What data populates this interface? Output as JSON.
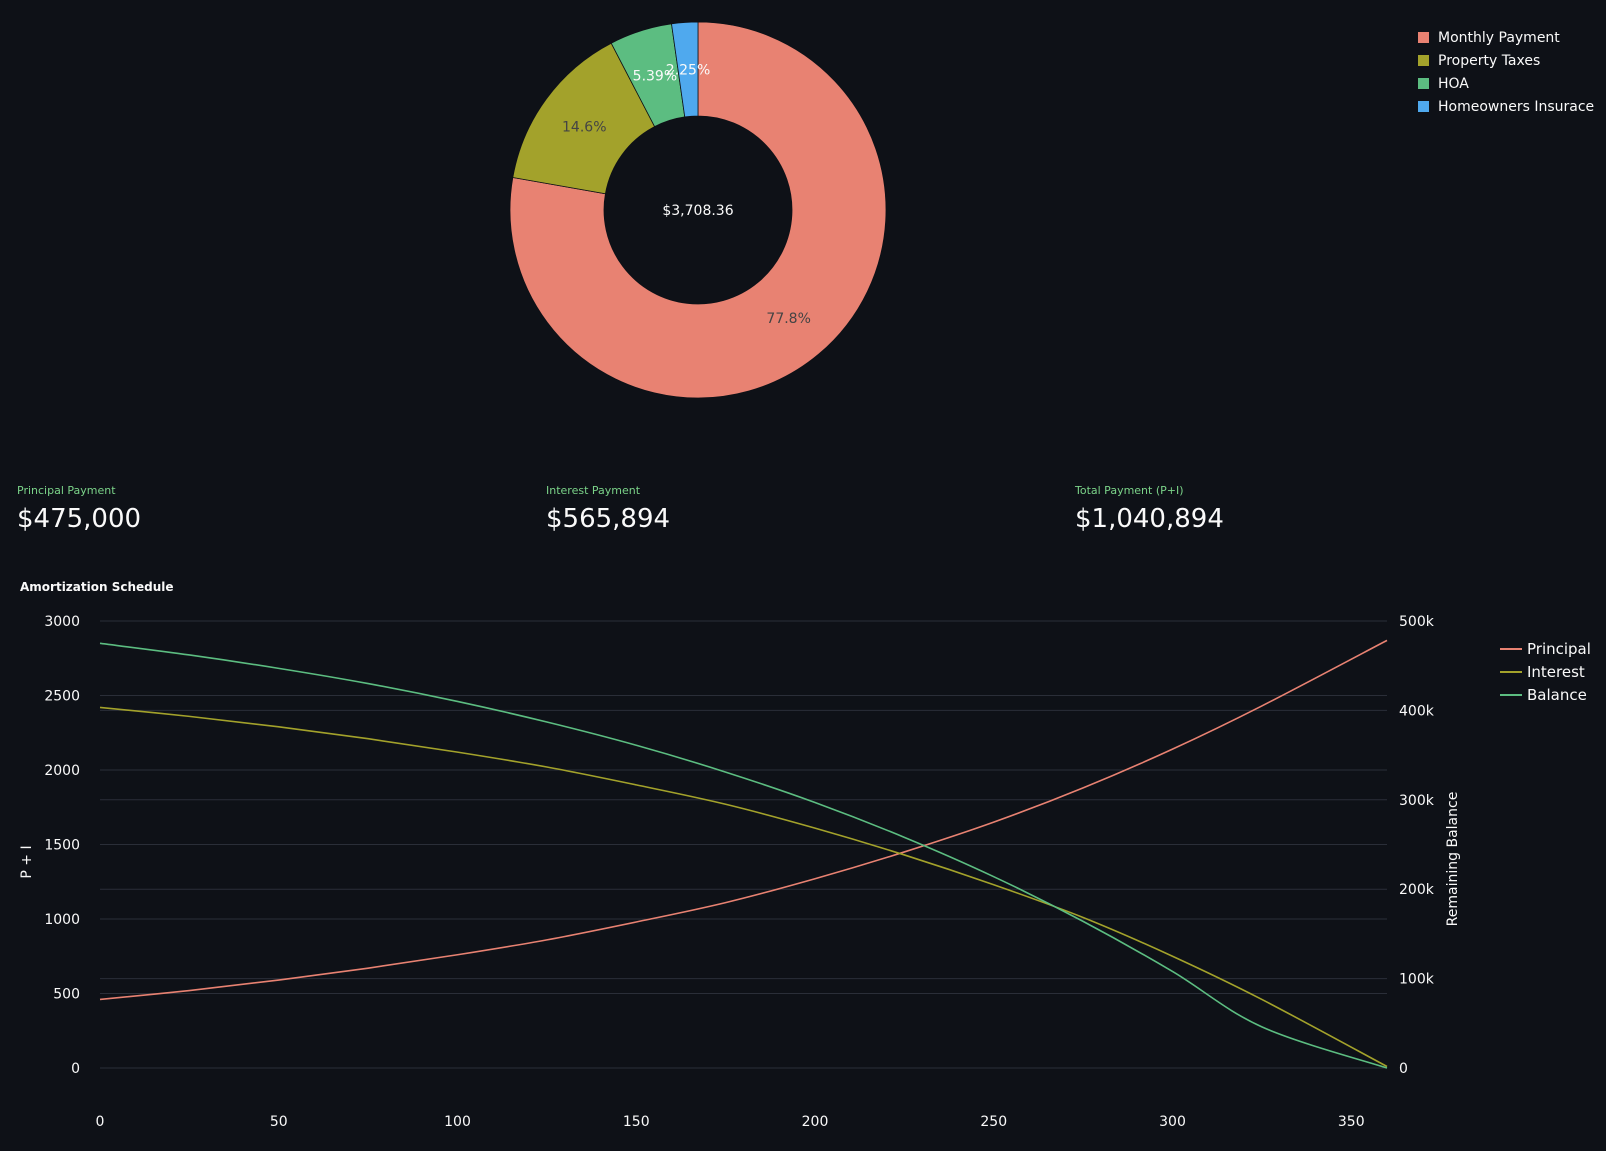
{
  "chart_data": [
    {
      "type": "pie",
      "donut": true,
      "center_text": "$3,708.36",
      "slices": [
        {
          "label": "Monthly Payment",
          "percent": 77.8,
          "display": "77.8%",
          "color": "#e88272"
        },
        {
          "label": "Property Taxes",
          "percent": 14.6,
          "display": "14.6%",
          "color": "#a3a22b"
        },
        {
          "label": "HOA",
          "percent": 5.39,
          "display": "5.39%",
          "color": "#5cbd81"
        },
        {
          "label": "Homeowners Insurace",
          "percent": 2.25,
          "display": "2.25%",
          "color": "#4fa9ee"
        }
      ],
      "legend_position": "top-right"
    },
    {
      "type": "line",
      "title": "Amortization Schedule",
      "xlabel": "",
      "ylabel": "P + I",
      "y2label": "Remaining Balance",
      "xlim": [
        0,
        360
      ],
      "ylim": [
        0,
        3000
      ],
      "y2lim": [
        0,
        500000
      ],
      "xticks": [
        0,
        50,
        100,
        150,
        200,
        250,
        300,
        350
      ],
      "yticks": [
        0,
        500,
        1000,
        1500,
        2000,
        2500,
        3000
      ],
      "y2ticks": [
        {
          "value": 0,
          "label": "0"
        },
        {
          "value": 100000,
          "label": "100k"
        },
        {
          "value": 200000,
          "label": "200k"
        },
        {
          "value": 300000,
          "label": "300k"
        },
        {
          "value": 400000,
          "label": "400k"
        },
        {
          "value": 500000,
          "label": "500k"
        }
      ],
      "grid": true,
      "legend_position": "top-right",
      "series": [
        {
          "name": "Principal",
          "axis": "left",
          "color": "#e88272",
          "x": [
            0,
            25,
            50,
            75,
            100,
            125,
            150,
            175,
            200,
            225,
            250,
            275,
            300,
            325,
            360
          ],
          "y": [
            460,
            520,
            590,
            670,
            760,
            860,
            980,
            1110,
            1270,
            1450,
            1650,
            1880,
            2140,
            2430,
            2870
          ]
        },
        {
          "name": "Interest",
          "axis": "left",
          "color": "#a3a22b",
          "x": [
            0,
            25,
            50,
            75,
            100,
            125,
            150,
            175,
            200,
            225,
            250,
            275,
            300,
            325,
            360
          ],
          "y": [
            2420,
            2360,
            2290,
            2210,
            2120,
            2020,
            1900,
            1770,
            1610,
            1430,
            1230,
            1010,
            750,
            460,
            10
          ]
        },
        {
          "name": "Balance",
          "axis": "right",
          "color": "#5cbd81",
          "x": [
            0,
            25,
            50,
            75,
            100,
            125,
            150,
            175,
            200,
            225,
            250,
            275,
            300,
            325,
            360
          ],
          "y": [
            475000,
            462000,
            447000,
            430000,
            410000,
            387000,
            361000,
            331000,
            297000,
            258000,
            214000,
            164000,
            108000,
            46000,
            0
          ]
        }
      ]
    }
  ],
  "metrics": {
    "principal": {
      "label": "Principal Payment",
      "value": "$475,000"
    },
    "interest": {
      "label": "Interest Payment",
      "value": "$565,894"
    },
    "total": {
      "label": "Total Payment (P+I)",
      "value": "$1,040,894"
    }
  },
  "colors": {
    "background": "#0e1117",
    "text": "#fafafa",
    "metric_label": "#7bd389",
    "grid": "#2a2e38"
  }
}
